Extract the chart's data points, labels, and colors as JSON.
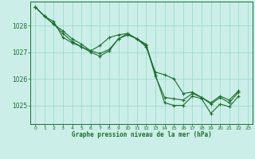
{
  "title": "Graphe pression niveau de la mer (hPa)",
  "bg_color": "#cceee8",
  "grid_color": "#99ddcc",
  "line_color": "#1a6e2e",
  "marker": "+",
  "xlim": [
    -0.5,
    23.5
  ],
  "ylim": [
    1024.3,
    1028.9
  ],
  "yticks": [
    1025,
    1026,
    1027,
    1028
  ],
  "xticks": [
    0,
    1,
    2,
    3,
    4,
    5,
    6,
    7,
    8,
    9,
    10,
    11,
    12,
    13,
    14,
    15,
    16,
    17,
    18,
    19,
    20,
    21,
    22,
    23
  ],
  "series": [
    {
      "x": [
        0,
        1,
        2,
        3,
        4,
        5,
        6,
        7,
        8,
        9,
        10,
        11,
        12,
        13,
        14,
        15,
        16,
        17,
        18,
        19,
        20,
        21,
        22,
        23
      ],
      "y": [
        1028.7,
        1028.35,
        1028.15,
        1027.55,
        1027.35,
        1027.2,
        1027.05,
        1027.25,
        1027.55,
        1027.65,
        1027.7,
        1027.5,
        1027.3,
        1026.15,
        1025.1,
        1025.0,
        1025.0,
        1025.35,
        1025.25,
        1024.7,
        1025.05,
        1024.95,
        1025.35,
        null
      ]
    },
    {
      "x": [
        0,
        1,
        2,
        3,
        4,
        5,
        6,
        7,
        8,
        9,
        10,
        11,
        12,
        13,
        14,
        15,
        16,
        17,
        18,
        19,
        20,
        21,
        22,
        23
      ],
      "y": [
        1028.7,
        1028.35,
        1028.05,
        1027.8,
        1027.5,
        1027.3,
        1027.05,
        1026.95,
        1027.1,
        1027.5,
        1027.7,
        1027.5,
        1027.2,
        1026.25,
        1026.15,
        1026.0,
        1025.45,
        1025.5,
        1025.3,
        1025.1,
        1025.35,
        1025.2,
        1025.55,
        null
      ]
    },
    {
      "x": [
        0,
        1,
        2,
        3,
        4,
        5,
        6,
        7,
        8,
        9,
        10,
        11,
        12,
        13,
        14,
        15,
        16,
        17,
        18,
        19,
        20,
        21,
        22,
        23
      ],
      "y": [
        1028.7,
        1028.35,
        1028.05,
        1027.7,
        1027.4,
        1027.2,
        1027.0,
        1026.85,
        1027.05,
        1027.5,
        1027.65,
        1027.5,
        1027.25,
        1026.1,
        1025.3,
        1025.25,
        1025.2,
        1025.45,
        1025.3,
        1025.05,
        1025.3,
        1025.1,
        1025.5,
        null
      ]
    }
  ]
}
